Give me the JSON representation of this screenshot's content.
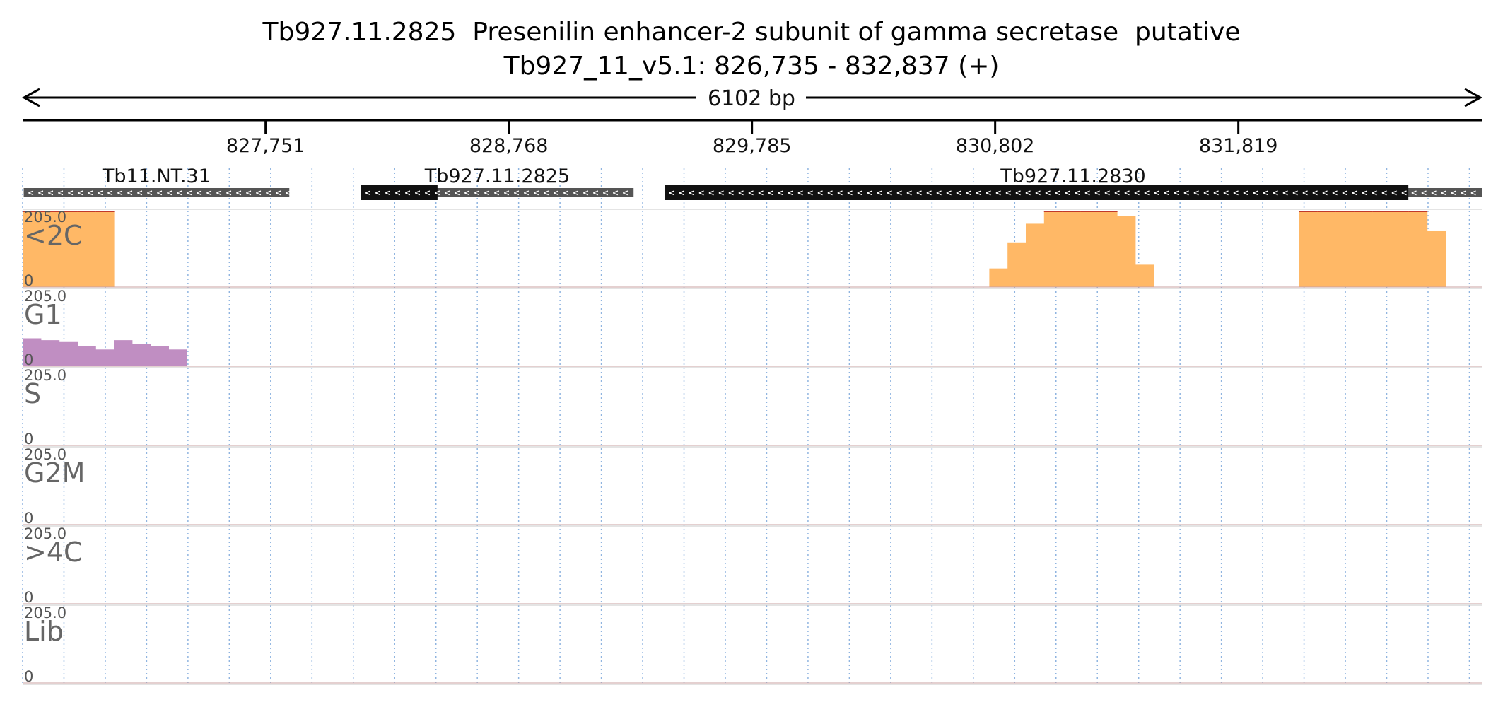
{
  "chart_data": {
    "type": "area",
    "title": "Tb927.11.2825  Presenilin enhancer-2 subunit of gamma secretase  putative",
    "subtitle": "Tb927_11_v5.1: 826,735 - 832,837 (+)",
    "span_label": "6102 bp",
    "region": [
      826735,
      832837
    ],
    "ticks": [
      827751,
      828768,
      829785,
      830802,
      831819
    ],
    "tick_labels": [
      "827,751",
      "828,768",
      "829,785",
      "830,802",
      "831,819"
    ],
    "bins": 80,
    "bin_width_bp": 76.275,
    "genes": [
      {
        "name": "Tb11.NT.31",
        "start": 826740,
        "end": 827850,
        "strand": "-",
        "coding": [
          826740,
          827850
        ],
        "style": "gray"
      },
      {
        "name": "Tb927.11.2825",
        "start": 828150,
        "end": 829290,
        "strand": "-",
        "coding": [
          828150,
          828470
        ],
        "style": "black"
      },
      {
        "name": "Tb927.11.2830",
        "start": 829420,
        "end": 832837,
        "strand": "-",
        "coding": [
          829420,
          832530
        ],
        "style": "black"
      }
    ],
    "series": [
      {
        "name": "<2C",
        "color": "#ffb866",
        "ymax": 205.0,
        "values": [
          205,
          205,
          205,
          205,
          205,
          0,
          0,
          0,
          0,
          0,
          0,
          0,
          0,
          0,
          0,
          0,
          0,
          0,
          0,
          0,
          0,
          0,
          0,
          0,
          0,
          0,
          0,
          0,
          0,
          0,
          0,
          0,
          0,
          0,
          0,
          0,
          0,
          0,
          0,
          0,
          0,
          0,
          0,
          0,
          0,
          0,
          0,
          0,
          0,
          0,
          0,
          0,
          0,
          50,
          120,
          170,
          205,
          205,
          205,
          205,
          190,
          60,
          0,
          0,
          0,
          0,
          0,
          0,
          0,
          0,
          205,
          205,
          205,
          205,
          205,
          205,
          205,
          150,
          0,
          0
        ]
      },
      {
        "name": "G1",
        "color": "#c08ec2",
        "ymax": 205.0,
        "values": [
          75,
          70,
          65,
          55,
          45,
          70,
          60,
          55,
          45,
          0,
          0,
          0,
          0,
          0,
          0,
          0,
          0,
          0,
          0,
          0,
          0,
          0,
          0,
          0,
          0,
          0,
          0,
          0,
          0,
          0,
          0,
          0,
          0,
          0,
          0,
          0,
          0,
          0,
          0,
          0,
          0,
          0,
          0,
          0,
          0,
          0,
          0,
          0,
          0,
          0,
          0,
          0,
          0,
          0,
          0,
          0,
          0,
          0,
          0,
          0,
          0,
          0,
          0,
          0,
          0,
          0,
          0,
          0,
          0,
          0,
          0,
          0,
          0,
          0,
          0,
          0,
          0,
          0,
          0,
          0
        ]
      },
      {
        "name": "S",
        "color": "#85cd85",
        "ymax": 205.0,
        "values": [
          0,
          0,
          0,
          0,
          0,
          0,
          0,
          0,
          0,
          0,
          0,
          0,
          0,
          0,
          0,
          0,
          0,
          0,
          0,
          0,
          0,
          0,
          0,
          0,
          0,
          0,
          0,
          0,
          0,
          0,
          0,
          0,
          0,
          0,
          0,
          0,
          0,
          0,
          0,
          0,
          0,
          0,
          0,
          0,
          0,
          0,
          0,
          0,
          0,
          0,
          0,
          0,
          0,
          0,
          0,
          0,
          0,
          0,
          0,
          0,
          0,
          0,
          0,
          0,
          0,
          0,
          0,
          0,
          0,
          0,
          0,
          0,
          0,
          0,
          0,
          0,
          0,
          0,
          0,
          0
        ]
      },
      {
        "name": "G2M",
        "color": "#7ab4e2",
        "ymax": 205.0,
        "values": [
          0,
          0,
          0,
          0,
          0,
          0,
          0,
          0,
          0,
          0,
          0,
          0,
          0,
          0,
          0,
          0,
          0,
          0,
          0,
          0,
          0,
          0,
          0,
          0,
          0,
          0,
          0,
          0,
          0,
          0,
          0,
          0,
          0,
          0,
          0,
          0,
          0,
          0,
          0,
          0,
          0,
          0,
          0,
          0,
          0,
          0,
          0,
          0,
          0,
          0,
          0,
          0,
          0,
          0,
          0,
          0,
          0,
          0,
          0,
          0,
          0,
          0,
          0,
          0,
          0,
          0,
          0,
          0,
          0,
          0,
          0,
          0,
          0,
          0,
          0,
          0,
          0,
          0,
          0,
          0
        ]
      },
      {
        "name": ">4C",
        "color": "#f59bc4",
        "ymax": 205.0,
        "values": [
          0,
          0,
          0,
          0,
          0,
          0,
          0,
          0,
          0,
          0,
          0,
          0,
          0,
          0,
          0,
          0,
          0,
          0,
          0,
          0,
          0,
          0,
          0,
          0,
          0,
          0,
          0,
          0,
          0,
          0,
          0,
          0,
          0,
          0,
          0,
          0,
          0,
          0,
          0,
          0,
          0,
          0,
          0,
          0,
          0,
          0,
          0,
          0,
          0,
          0,
          0,
          0,
          0,
          0,
          0,
          0,
          0,
          0,
          0,
          0,
          0,
          0,
          0,
          0,
          0,
          0,
          0,
          0,
          0,
          0,
          0,
          0,
          0,
          0,
          0,
          0,
          0,
          0,
          0,
          0
        ]
      },
      {
        "name": "Lib",
        "color": "#e3d867",
        "ymax": 205.0,
        "values": [
          0,
          0,
          0,
          0,
          0,
          0,
          0,
          0,
          0,
          0,
          0,
          0,
          0,
          0,
          0,
          0,
          0,
          0,
          0,
          0,
          0,
          0,
          0,
          0,
          0,
          0,
          0,
          0,
          0,
          0,
          0,
          0,
          0,
          0,
          0,
          0,
          0,
          0,
          0,
          0,
          0,
          0,
          0,
          0,
          0,
          0,
          0,
          0,
          0,
          0,
          0,
          0,
          0,
          0,
          0,
          0,
          0,
          0,
          0,
          0,
          0,
          0,
          0,
          0,
          0,
          0,
          0,
          0,
          0,
          0,
          0,
          0,
          0,
          0,
          0,
          0,
          0,
          0,
          0,
          0
        ]
      }
    ],
    "scale_labels": [
      "205.0",
      "0"
    ]
  }
}
